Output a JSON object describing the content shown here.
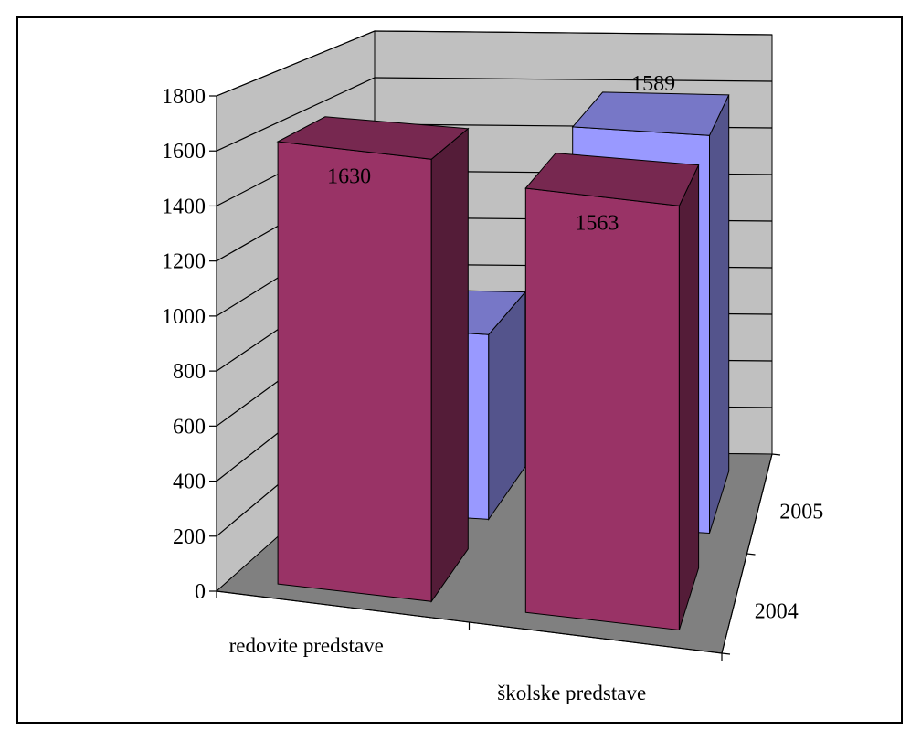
{
  "chart_data": {
    "type": "bar",
    "subtype": "3d-column",
    "categories": [
      "redovite predstave",
      "školske predstave"
    ],
    "series": [
      {
        "name": "2004",
        "values": [
          1630,
          1563
        ],
        "color": "#993366"
      },
      {
        "name": "2005",
        "values": [
          738,
          1589
        ],
        "color": "#9999ff"
      }
    ],
    "y_ticks": [
      "0",
      "200",
      "400",
      "600",
      "800",
      "1000",
      "1200",
      "1400",
      "1600",
      "1800"
    ],
    "ylim": [
      0,
      1800
    ],
    "grid": true,
    "colors": {
      "back_wall": "#c0c0c0",
      "floor": "#808080",
      "grid": "#000000"
    }
  }
}
